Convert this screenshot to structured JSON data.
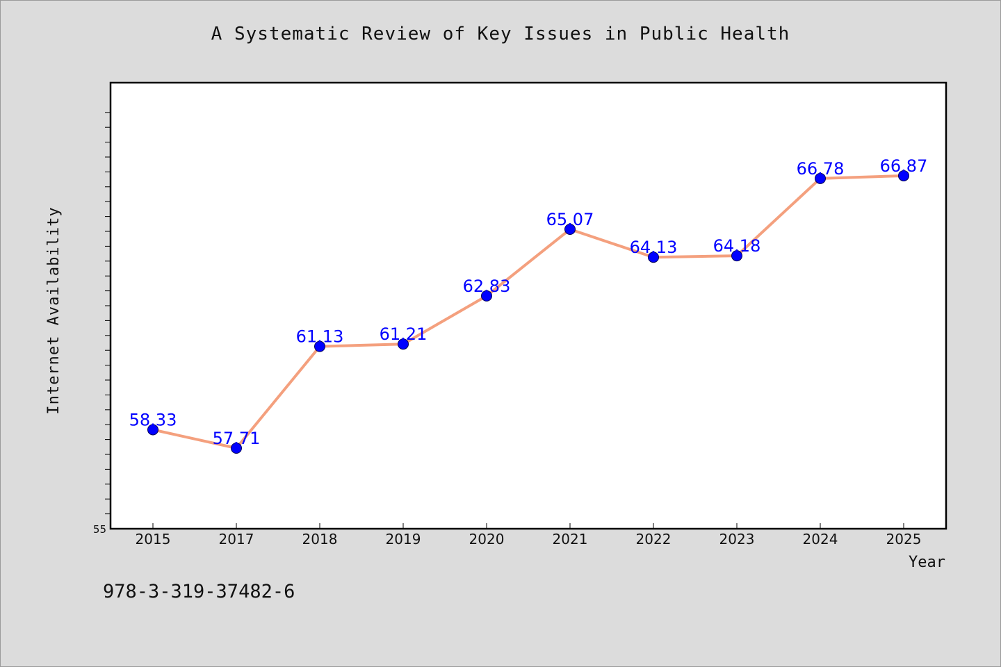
{
  "title": "A Systematic Review of Key Issues in Public Health",
  "footer_text": "978-3-319-37482-6",
  "chart_data": {
    "type": "line",
    "title": "A Systematic Review of Key Issues in Public Health",
    "xlabel": "Year",
    "ylabel": "Internet Availability",
    "categories": [
      "2015",
      "2017",
      "2018",
      "2019",
      "2020",
      "2021",
      "2022",
      "2023",
      "2024",
      "2025"
    ],
    "series": [
      {
        "values": [
          58.33,
          57.71,
          61.13,
          61.21,
          62.83,
          65.07,
          64.13,
          64.18,
          66.78,
          66.87
        ],
        "line_color": "#f4a07e",
        "marker_color": "#0000ff",
        "label_color": "#0000ff"
      }
    ],
    "ylim": [
      55,
      70
    ],
    "y_tick_labels": [
      "55"
    ],
    "grid": false,
    "legend": "none"
  },
  "colors": {
    "background": "#dcdcdc",
    "plot_background": "#ffffff",
    "axis": "#000000"
  }
}
